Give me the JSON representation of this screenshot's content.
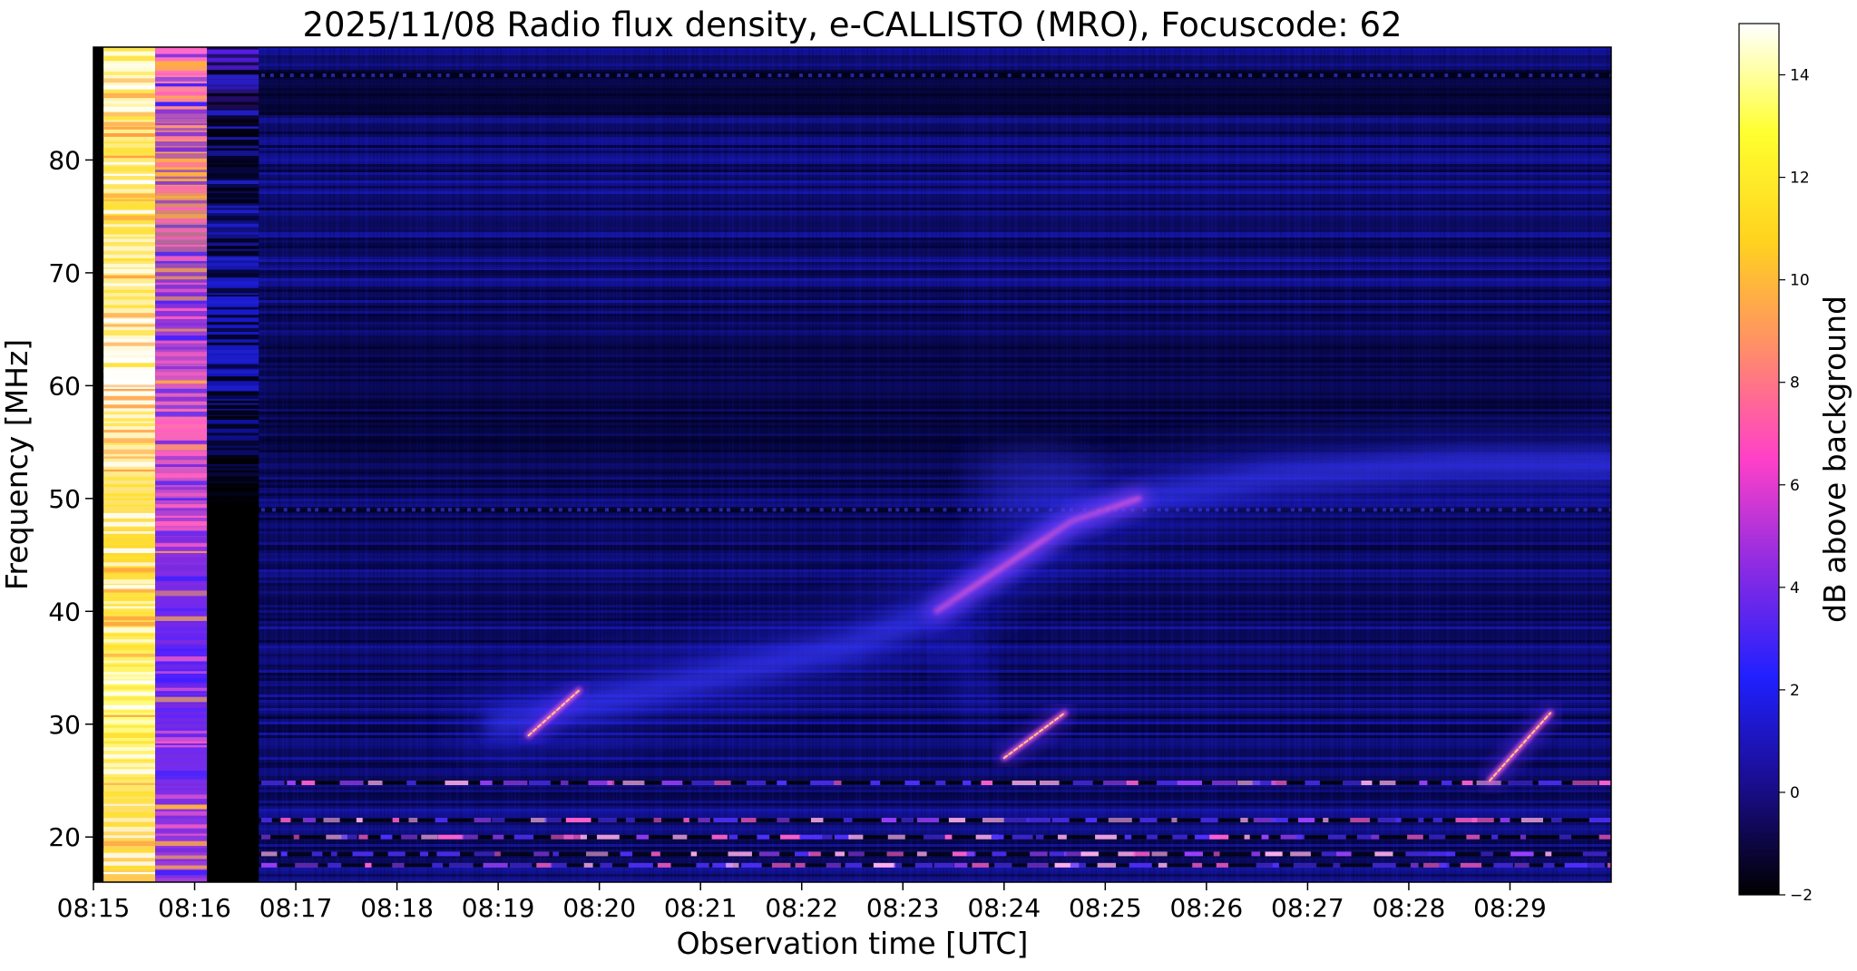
{
  "chart_data": {
    "type": "heatmap",
    "title": "2025/11/08  Radio flux density, e-CALLISTO (MRO), Focuscode: 62",
    "xlabel": "Observation time [UTC]",
    "ylabel": "Frequency [MHz]",
    "xlim": [
      "08:15",
      "08:30"
    ],
    "ylim": [
      16,
      90
    ],
    "x_ticks": [
      "08:15",
      "08:16",
      "08:17",
      "08:18",
      "08:19",
      "08:20",
      "08:21",
      "08:22",
      "08:23",
      "08:24",
      "08:25",
      "08:26",
      "08:27",
      "08:28",
      "08:29"
    ],
    "y_ticks": [
      20,
      30,
      40,
      50,
      60,
      70,
      80
    ],
    "colorbar": {
      "label": "dB above background",
      "range": [
        -2,
        15
      ],
      "ticks": [
        -2,
        0,
        2,
        4,
        6,
        8,
        10,
        12,
        14
      ],
      "colormap": [
        "#000000",
        "#1a0d8c",
        "#2020ff",
        "#8a2be2",
        "#ff40c8",
        "#ff8c6a",
        "#ffd21e",
        "#ffff30",
        "#ffffff"
      ]
    },
    "features": [
      {
        "name": "",
        "kind": "saturated_columns",
        "time_range": [
          "08:15:06",
          "08:16:38"
        ]
      },
      {
        "name": "",
        "kind": "drift_burst",
        "t_start": "08:19:18",
        "t_end": "08:19:48",
        "f_start": 29,
        "f_end": 33
      },
      {
        "name": "",
        "kind": "drift_burst",
        "t_start": "08:24:00",
        "t_end": "08:24:36",
        "f_start": 27,
        "f_end": 31
      },
      {
        "name": "",
        "kind": "drift_burst",
        "t_start": "08:28:48",
        "t_end": "08:29:24",
        "f_start": 25,
        "f_end": 31
      },
      {
        "name": "",
        "kind": "diffuse_drift",
        "points": [
          [
            "08:19:00",
            30
          ],
          [
            "08:20:30",
            33
          ],
          [
            "08:21:30",
            35
          ],
          [
            "08:22:30",
            37
          ],
          [
            "08:23:20",
            40
          ],
          [
            "08:24:00",
            44
          ],
          [
            "08:24:40",
            48
          ],
          [
            "08:25:20",
            50
          ],
          [
            "08:26:40",
            52
          ],
          [
            "08:28:30",
            53
          ],
          [
            "08:30:00",
            53
          ]
        ]
      },
      {
        "name": "",
        "kind": "rfi_lines",
        "freqs": [
          17.5,
          18.5,
          20,
          21.5,
          24.8,
          49,
          87.5
        ]
      }
    ]
  }
}
